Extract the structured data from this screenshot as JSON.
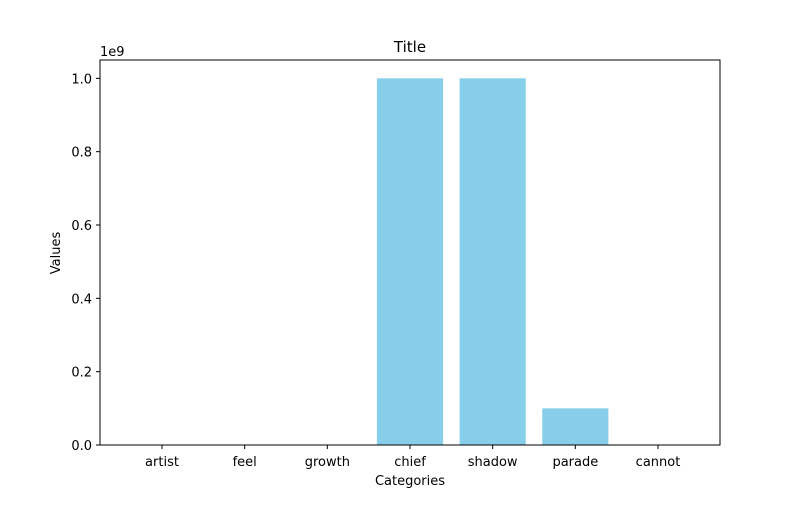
{
  "chart_data": {
    "type": "bar",
    "title": "Title",
    "xlabel": "Categories",
    "ylabel": "Values",
    "y_offset_label": "1e9",
    "categories": [
      "artist",
      "feel",
      "growth",
      "chief",
      "shadow",
      "parade",
      "cannot"
    ],
    "values": [
      0,
      0,
      0,
      1000000000,
      1000000000,
      100000000,
      0
    ],
    "ylim": [
      0,
      1050000000
    ],
    "yticks": [
      0,
      200000000,
      400000000,
      600000000,
      800000000,
      1000000000
    ],
    "ytick_labels": [
      "0.0",
      "0.2",
      "0.4",
      "0.6",
      "0.8",
      "1.0"
    ],
    "bar_color": "#87ceeb",
    "grid": false,
    "legend": false
  }
}
